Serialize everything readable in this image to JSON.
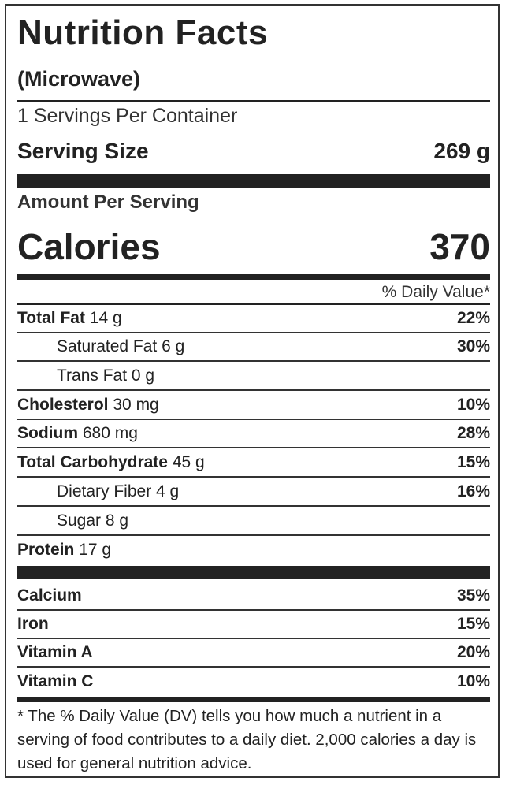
{
  "header": {
    "title": "Nutrition Facts",
    "subtitle": "(Microwave)"
  },
  "servings": {
    "per_container": "1 Servings Per Container",
    "serving_size_label": "Serving Size",
    "serving_size_value": "269 g"
  },
  "calories": {
    "amount_label": "Amount Per Serving",
    "label": "Calories",
    "value": "370"
  },
  "daily_value_header": "% Daily Value*",
  "nutrients": [
    {
      "name": "Total Fat",
      "amount": "14 g",
      "dv": "22%"
    },
    {
      "name": "Saturated Fat",
      "amount": "6 g",
      "dv": "30%"
    },
    {
      "name": "Trans Fat",
      "amount": "0 g",
      "dv": ""
    },
    {
      "name": "Cholesterol",
      "amount": "30 mg",
      "dv": "10%"
    },
    {
      "name": "Sodium",
      "amount": "680 mg",
      "dv": "28%"
    },
    {
      "name": "Total Carbohydrate",
      "amount": "45 g",
      "dv": "15%"
    },
    {
      "name": "Dietary Fiber",
      "amount": "4 g",
      "dv": "16%"
    },
    {
      "name": "Sugar",
      "amount": "8 g",
      "dv": ""
    },
    {
      "name": "Protein",
      "amount": "17 g",
      "dv": ""
    }
  ],
  "vitamins": [
    {
      "name": "Calcium",
      "dv": "35%"
    },
    {
      "name": "Iron",
      "dv": "15%"
    },
    {
      "name": "Vitamin A",
      "dv": "20%"
    },
    {
      "name": "Vitamin C",
      "dv": "10%"
    }
  ],
  "footnote": "* The % Daily Value (DV) tells you how much a nutrient in a serving of food contributes to a daily diet. 2,000 calories a day is used for general nutrition advice."
}
